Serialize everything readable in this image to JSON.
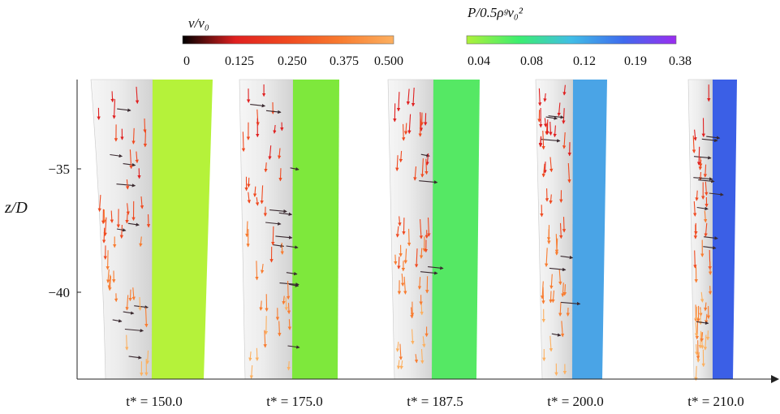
{
  "velocity_colorbar": {
    "title": "v/v₀",
    "ticks": [
      "0",
      "0.125",
      "0.250",
      "0.375",
      "0.500"
    ],
    "colors": [
      "#000000",
      "#e02020",
      "#f04a20",
      "#f87c30",
      "#fcb060"
    ]
  },
  "pressure_colorbar": {
    "title": "P/0.5ρᵍv₀²",
    "ticks": [
      "0.04",
      "0.08",
      "0.12",
      "0.19",
      "0.38"
    ],
    "colors": [
      "#aef03a",
      "#3cee70",
      "#40bde6",
      "#3f6aee",
      "#9b2cf0"
    ]
  },
  "axis": {
    "ylabel": "z/D",
    "yticks": [
      "−35",
      "−40"
    ]
  },
  "panels": [
    {
      "time_label": "t* = 150.0",
      "surface_color": "#b5f23a"
    },
    {
      "time_label": "t* = 175.0",
      "surface_color": "#7ee83c"
    },
    {
      "time_label": "t* = 187.5",
      "surface_color": "#55e864"
    },
    {
      "time_label": "t* = 200.0",
      "surface_color": "#4aa4e6"
    },
    {
      "time_label": "t* = 210.0",
      "surface_color": "#3b5fe6"
    }
  ]
}
